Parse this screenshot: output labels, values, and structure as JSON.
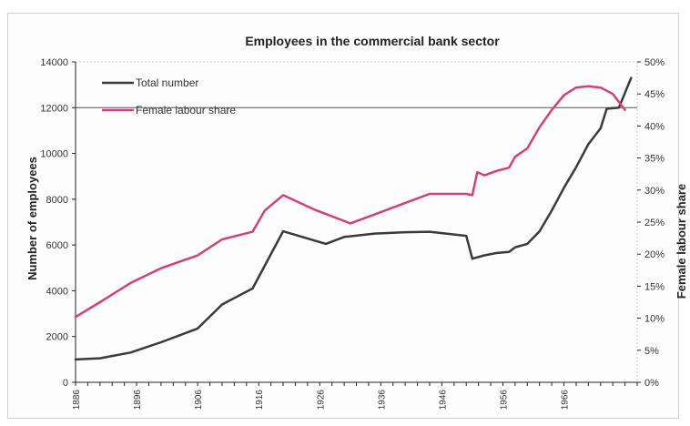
{
  "chart_data": {
    "type": "line",
    "title": "Employees in the commercial bank sector",
    "ylabel": "Number of employees",
    "y2label": "Female labour share",
    "ylim": [
      0,
      14000
    ],
    "y2lim": [
      0,
      50
    ],
    "xlim": [
      1886,
      1978
    ],
    "xticks": [
      "1886",
      "1896",
      "1906",
      "1916",
      "1926",
      "1936",
      "1946",
      "1956",
      "1966"
    ],
    "yticks": [
      "0",
      "2000",
      "4000",
      "6000",
      "8000",
      "10000",
      "12000",
      "14000"
    ],
    "y2ticks": [
      "0%",
      "5%",
      "10%",
      "15%",
      "20%",
      "25%",
      "30%",
      "35%",
      "40%",
      "45%",
      "50%"
    ],
    "legend_position": "top-left",
    "series": [
      {
        "name": "Total number",
        "axis": "left",
        "color": "#3a3a3a",
        "points": [
          [
            1886,
            1000
          ],
          [
            1890,
            1050
          ],
          [
            1895,
            1300
          ],
          [
            1900,
            1750
          ],
          [
            1906,
            2350
          ],
          [
            1910,
            3400
          ],
          [
            1915,
            4100
          ],
          [
            1920,
            6600
          ],
          [
            1927,
            6050
          ],
          [
            1930,
            6350
          ],
          [
            1935,
            6500
          ],
          [
            1940,
            6560
          ],
          [
            1944,
            6580
          ],
          [
            1950,
            6400
          ],
          [
            1951,
            5400
          ],
          [
            1953,
            5550
          ],
          [
            1955,
            5650
          ],
          [
            1957,
            5700
          ],
          [
            1958,
            5900
          ],
          [
            1960,
            6050
          ],
          [
            1962,
            6600
          ],
          [
            1964,
            7500
          ],
          [
            1966,
            8500
          ],
          [
            1968,
            9400
          ],
          [
            1970,
            10400
          ],
          [
            1972,
            11100
          ],
          [
            1973,
            11950
          ],
          [
            1975,
            12000
          ],
          [
            1977,
            13300
          ]
        ]
      },
      {
        "name": "Female labour share",
        "axis": "right",
        "color": "#d2407a",
        "points": [
          [
            1886,
            10.2
          ],
          [
            1890,
            12.5
          ],
          [
            1895,
            15.5
          ],
          [
            1900,
            17.8
          ],
          [
            1906,
            19.8
          ],
          [
            1910,
            22.3
          ],
          [
            1915,
            23.5
          ],
          [
            1917,
            26.8
          ],
          [
            1920,
            29.2
          ],
          [
            1925,
            27.0
          ],
          [
            1931,
            24.8
          ],
          [
            1935,
            26.2
          ],
          [
            1940,
            28.0
          ],
          [
            1944,
            29.4
          ],
          [
            1950,
            29.4
          ],
          [
            1951,
            29.2
          ],
          [
            1951.8,
            32.8
          ],
          [
            1953,
            32.3
          ],
          [
            1955,
            33.0
          ],
          [
            1957,
            33.5
          ],
          [
            1958,
            35.2
          ],
          [
            1960,
            36.5
          ],
          [
            1962,
            39.8
          ],
          [
            1964,
            42.5
          ],
          [
            1966,
            44.8
          ],
          [
            1968,
            46.0
          ],
          [
            1970,
            46.2
          ],
          [
            1972,
            46.0
          ],
          [
            1974,
            45.0
          ],
          [
            1976,
            42.5
          ]
        ]
      }
    ]
  },
  "colors": {
    "axis": "#222222",
    "grid": "#c9c9c9",
    "frame": "#cfcfcf"
  }
}
